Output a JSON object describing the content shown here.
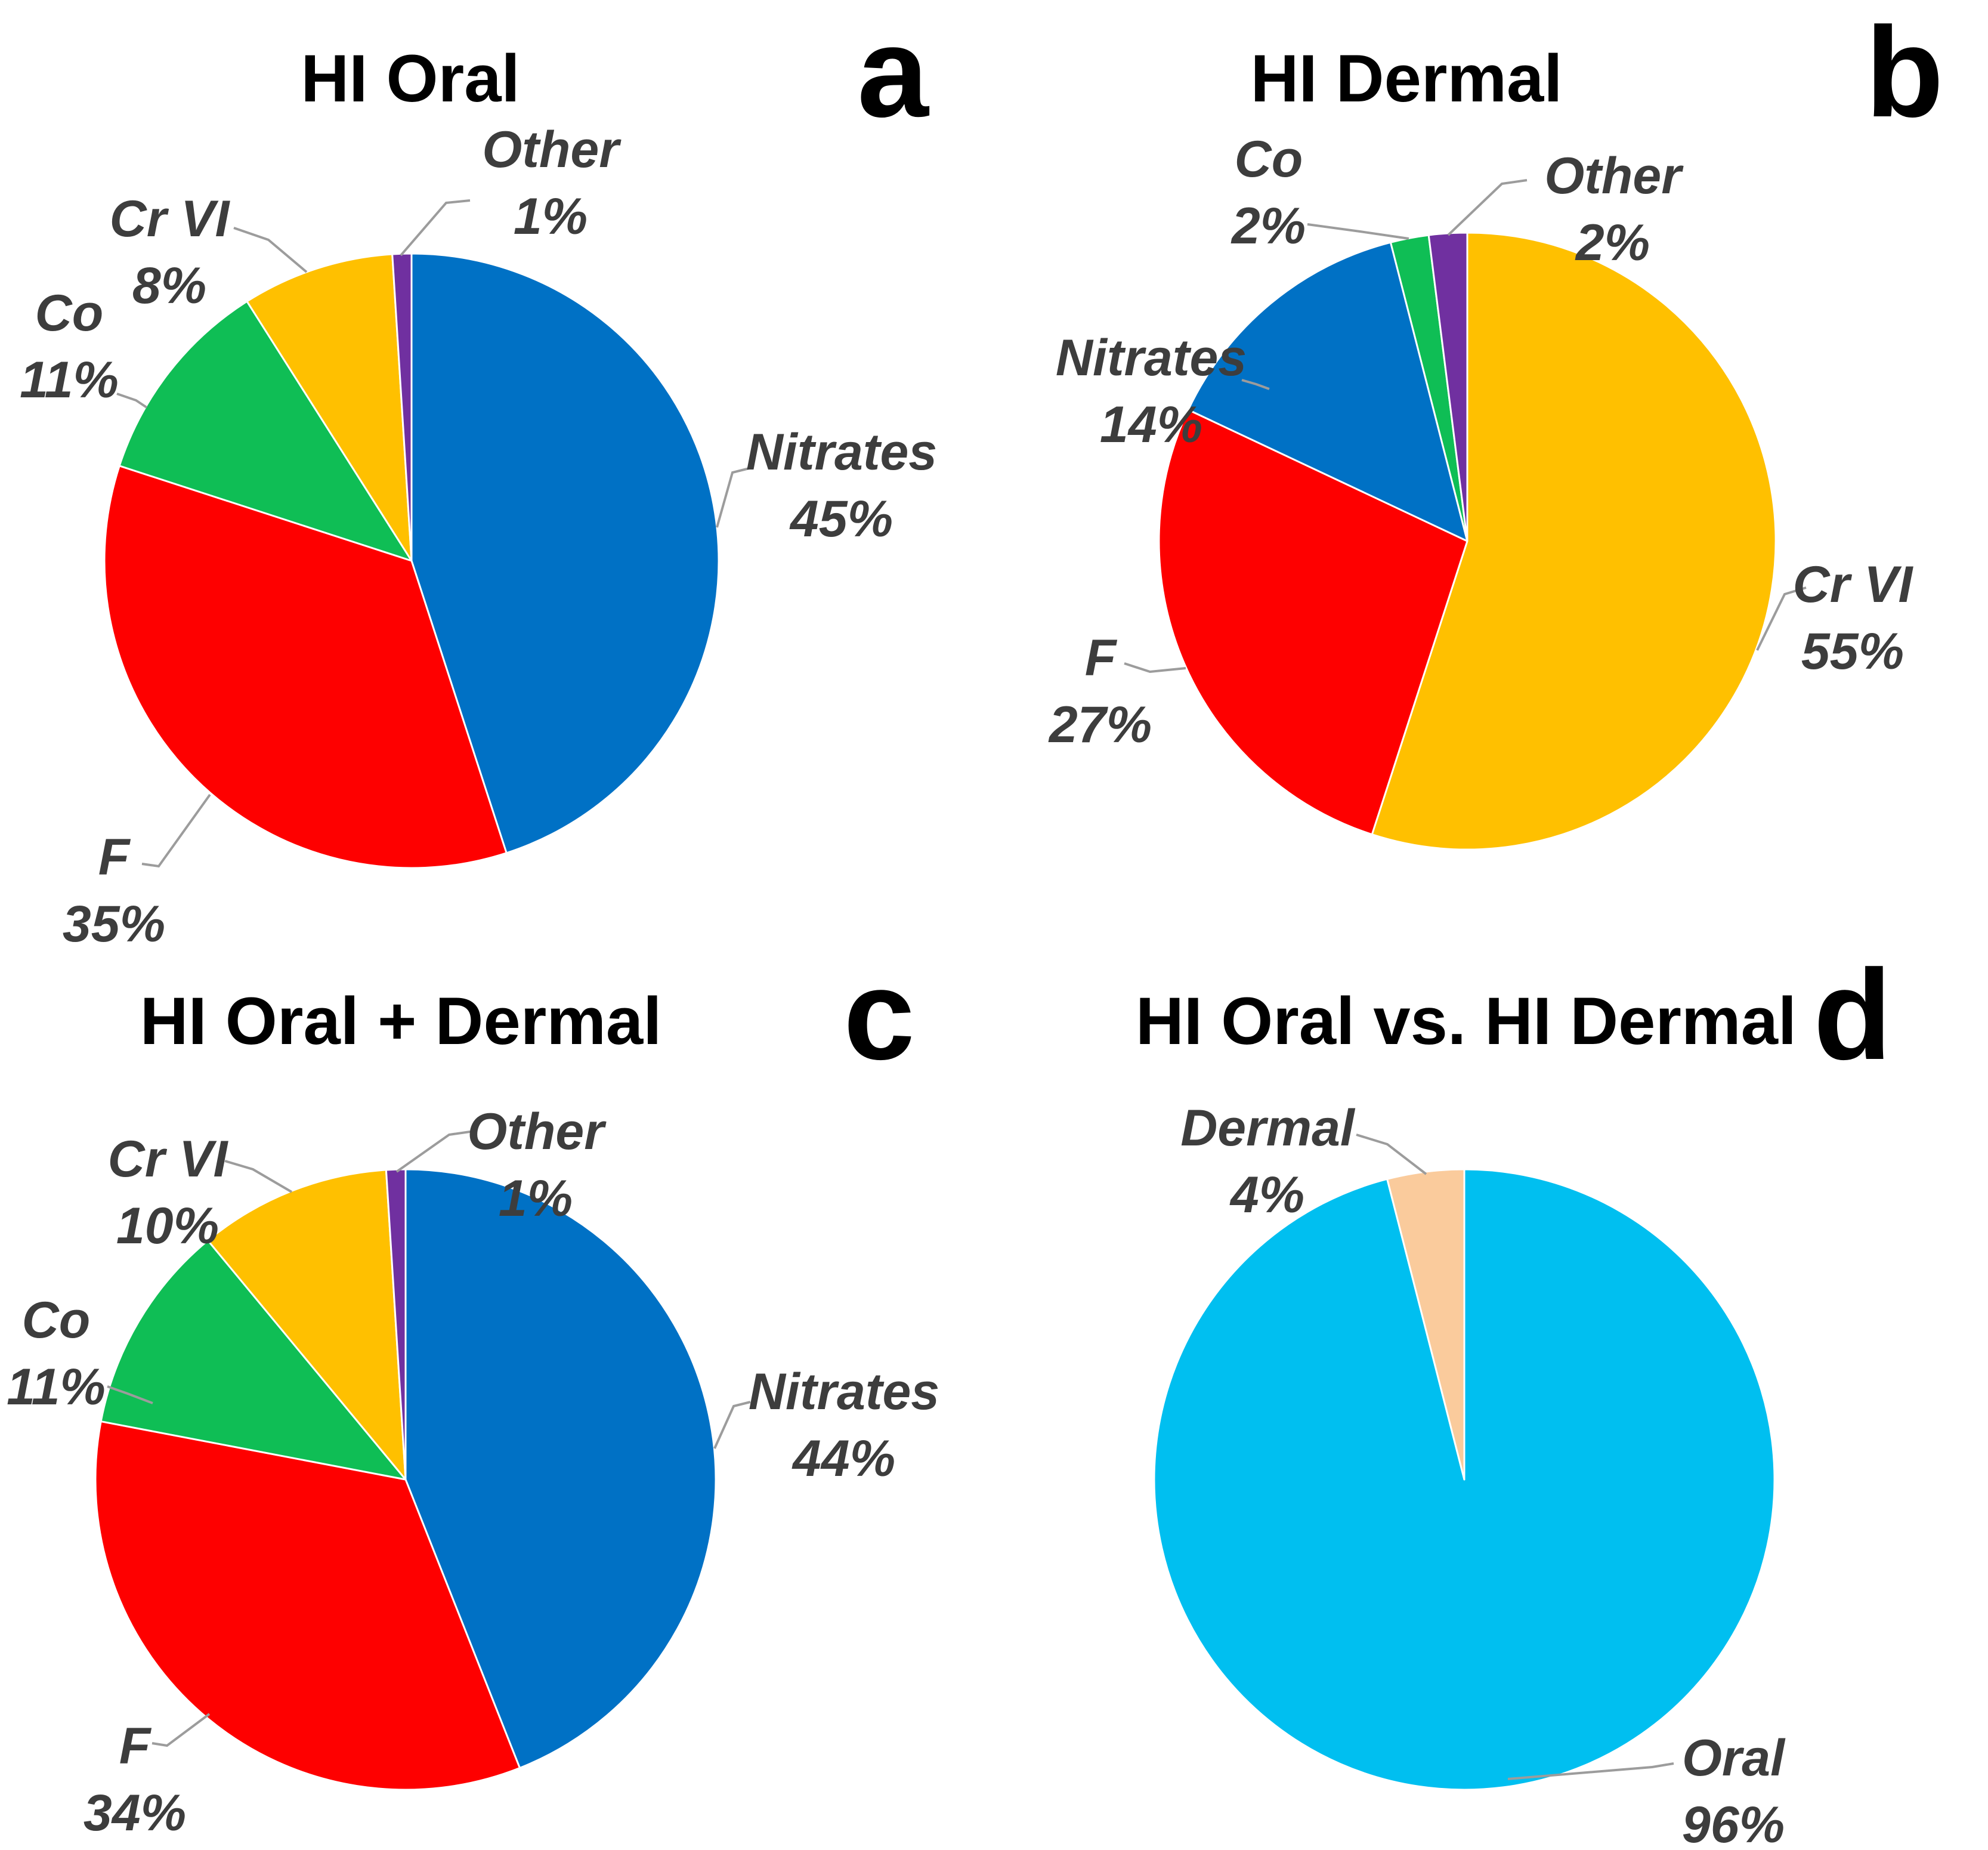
{
  "colors": {
    "nitrates_blue": "#0071C5",
    "fluoride_red": "#FE0000",
    "cobalt_green": "#0FBE55",
    "chromium_gold": "#FFC000",
    "other_purple": "#7030A0",
    "oral_cyan": "#00BFF0",
    "dermal_peach": "#FACB9C",
    "label_gray": "#3D3D3D",
    "leader_gray": "#9C9C9C"
  },
  "chart_data": [
    {
      "type": "pie",
      "panel_letter": "a",
      "title": "HI Oral",
      "start_angle": "12-oclock",
      "direction": "clockwise",
      "legend_position": "none",
      "categories": [
        "Nitrates",
        "F",
        "Co",
        "Cr VI",
        "Other"
      ],
      "values": [
        45,
        35,
        11,
        8,
        1
      ],
      "slices": [
        {
          "label": "Nitrates",
          "pct": 45,
          "pct_label": "45%",
          "color": "#0071C5"
        },
        {
          "label": "F",
          "pct": 35,
          "pct_label": "35%",
          "color": "#FE0000"
        },
        {
          "label": "Co",
          "pct": 11,
          "pct_label": "11%",
          "color": "#0FBE55"
        },
        {
          "label": "Cr VI",
          "pct": 8,
          "pct_label": "8%",
          "color": "#FFC000"
        },
        {
          "label": "Other",
          "pct": 1,
          "pct_label": "1%",
          "color": "#7030A0"
        }
      ]
    },
    {
      "type": "pie",
      "panel_letter": "b",
      "title": "HI Dermal",
      "start_angle": "12-oclock",
      "direction": "clockwise",
      "legend_position": "none",
      "categories": [
        "Cr VI",
        "F",
        "Nitrates",
        "Co",
        "Other"
      ],
      "values": [
        55,
        27,
        14,
        2,
        2
      ],
      "slices": [
        {
          "label": "Cr VI",
          "pct": 55,
          "pct_label": "55%",
          "color": "#FFC000"
        },
        {
          "label": "F",
          "pct": 27,
          "pct_label": "27%",
          "color": "#FE0000"
        },
        {
          "label": "Nitrates",
          "pct": 14,
          "pct_label": "14%",
          "color": "#0071C5"
        },
        {
          "label": "Co",
          "pct": 2,
          "pct_label": "2%",
          "color": "#0FBE55"
        },
        {
          "label": "Other",
          "pct": 2,
          "pct_label": "2%",
          "color": "#7030A0"
        }
      ]
    },
    {
      "type": "pie",
      "panel_letter": "c",
      "title": "HI Oral + Dermal",
      "start_angle": "12-oclock",
      "direction": "clockwise",
      "legend_position": "none",
      "categories": [
        "Nitrates",
        "F",
        "Co",
        "Cr VI",
        "Other"
      ],
      "values": [
        44,
        34,
        11,
        10,
        1
      ],
      "slices": [
        {
          "label": "Nitrates",
          "pct": 44,
          "pct_label": "44%",
          "color": "#0071C5"
        },
        {
          "label": "F",
          "pct": 34,
          "pct_label": "34%",
          "color": "#FE0000"
        },
        {
          "label": "Co",
          "pct": 11,
          "pct_label": "11%",
          "color": "#0FBE55"
        },
        {
          "label": "Cr VI",
          "pct": 10,
          "pct_label": "10%",
          "color": "#FFC000"
        },
        {
          "label": "Other",
          "pct": 1,
          "pct_label": "1%",
          "color": "#7030A0"
        }
      ]
    },
    {
      "type": "pie",
      "panel_letter": "d",
      "title": "HI Oral vs. HI Dermal",
      "start_angle": "12-oclock",
      "direction": "clockwise",
      "legend_position": "none",
      "categories": [
        "Oral",
        "Dermal"
      ],
      "values": [
        96,
        4
      ],
      "slices": [
        {
          "label": "Oral",
          "pct": 96,
          "pct_label": "96%",
          "color": "#00BFF0"
        },
        {
          "label": "Dermal",
          "pct": 4,
          "pct_label": "4%",
          "color": "#FACB9C"
        }
      ]
    }
  ]
}
